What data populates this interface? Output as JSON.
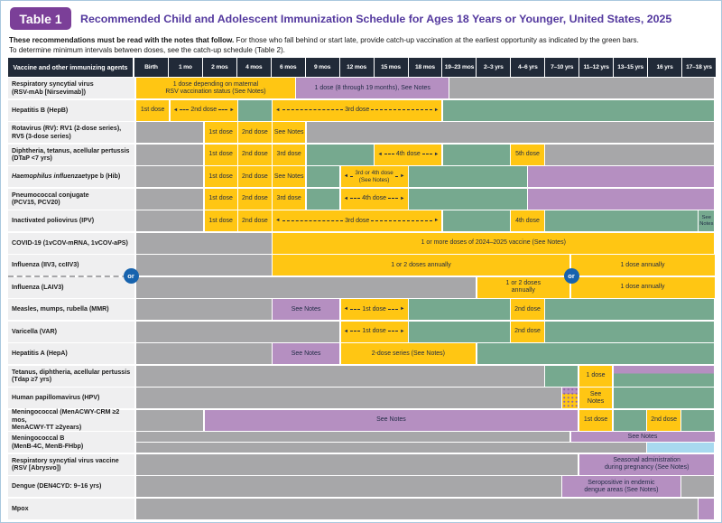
{
  "header": {
    "badge": "Table 1",
    "title": "Recommended Child and Adolescent Immunization Schedule for Ages 18 Years or Younger, United States, 2025"
  },
  "notes": {
    "line1_bold": "These recommendations must be read with the notes that follow.",
    "line1_rest": " For those who fall behind or start late, provide catch-up vaccination at the earliest opportunity as indicated by the green bars.",
    "line2": "To determine minimum intervals between doses, see the catch-up schedule (Table 2)."
  },
  "corner_header": "Vaccine and other immunizing agents",
  "columns": [
    "Birth",
    "1 mo",
    "2 mos",
    "4 mos",
    "6 mos",
    "9 mos",
    "12 mos",
    "15 mos",
    "18 mos",
    "19–23 mos",
    "2–3 yrs",
    "4–6 yrs",
    "7–10 yrs",
    "11–12 yrs",
    "13–15 yrs",
    "16 yrs",
    "17–18 yrs"
  ],
  "or_label": "or",
  "colors": {
    "yellow": "#FFC613",
    "green": "#76A98F",
    "purple": "#B58FC1",
    "gray": "#A7A7A9",
    "blue": "#A8D9EF",
    "header_bg": "#212A38",
    "badge_purple": "#7B3F98",
    "title_purple": "#53389E",
    "or_blue": "#1763AE",
    "label_bg": "#EFEFF0",
    "bar_text": "#1F2A44"
  },
  "rows": [
    {
      "name": "rsv-mab",
      "label": "Respiratory syncytial virus\n(RSV-mAb [Nirsevimab])",
      "tracks": [
        [
          {
            "c0": 0,
            "c1": 4.7,
            "color": "yellow",
            "text": "1 dose depending on maternal\nRSV vaccination status (See Notes)"
          },
          {
            "c0": 4.7,
            "c1": 9.2,
            "color": "purple",
            "text": "1 dose (8 through 19 months), See Notes"
          },
          {
            "c0": 9.2,
            "c1": 17,
            "color": "gray"
          }
        ]
      ]
    },
    {
      "name": "hepb",
      "label": "Hepatitis B (HepB)",
      "tracks": [
        [
          {
            "c0": 0,
            "c1": 1,
            "color": "yellow",
            "text": "1st dose"
          },
          {
            "c0": 1,
            "c1": 3,
            "color": "yellow",
            "text": "2nd dose",
            "arrows": true
          },
          {
            "c0": 3,
            "c1": 4,
            "color": "green"
          },
          {
            "c0": 4,
            "c1": 9,
            "color": "yellow",
            "text": "3rd dose",
            "arrows": true
          },
          {
            "c0": 9,
            "c1": 17,
            "color": "green"
          }
        ]
      ]
    },
    {
      "name": "rotavirus",
      "label": "Rotavirus (RV): RV1 (2-dose series),\nRV5 (3-dose series)",
      "tracks": [
        [
          {
            "c0": 0,
            "c1": 2,
            "color": "gray"
          },
          {
            "c0": 2,
            "c1": 3,
            "color": "yellow",
            "text": "1st dose"
          },
          {
            "c0": 3,
            "c1": 4,
            "color": "yellow",
            "text": "2nd dose"
          },
          {
            "c0": 4,
            "c1": 5,
            "color": "yellow",
            "text": "See Notes"
          },
          {
            "c0": 5,
            "c1": 17,
            "color": "gray"
          }
        ]
      ]
    },
    {
      "name": "dtap",
      "label": "Diphtheria, tetanus, acellular pertussis\n(DTaP <7 yrs)",
      "tracks": [
        [
          {
            "c0": 0,
            "c1": 2,
            "color": "gray"
          },
          {
            "c0": 2,
            "c1": 3,
            "color": "yellow",
            "text": "1st dose"
          },
          {
            "c0": 3,
            "c1": 4,
            "color": "yellow",
            "text": "2nd dose"
          },
          {
            "c0": 4,
            "c1": 5,
            "color": "yellow",
            "text": "3rd dose"
          },
          {
            "c0": 5,
            "c1": 7,
            "color": "green"
          },
          {
            "c0": 7,
            "c1": 9,
            "color": "yellow",
            "text": "4th dose",
            "arrows": true
          },
          {
            "c0": 9,
            "c1": 11,
            "color": "green"
          },
          {
            "c0": 11,
            "c1": 12,
            "color": "yellow",
            "text": "5th dose"
          },
          {
            "c0": 12,
            "c1": 17,
            "color": "gray"
          }
        ]
      ]
    },
    {
      "name": "hib",
      "label_em": "Haemophilus influenzae",
      "label": " type b (Hib)",
      "tracks": [
        [
          {
            "c0": 0,
            "c1": 2,
            "color": "gray"
          },
          {
            "c0": 2,
            "c1": 3,
            "color": "yellow",
            "text": "1st dose"
          },
          {
            "c0": 3,
            "c1": 4,
            "color": "yellow",
            "text": "2nd dose"
          },
          {
            "c0": 4,
            "c1": 5,
            "color": "yellow",
            "text": "See Notes"
          },
          {
            "c0": 5,
            "c1": 6,
            "color": "green"
          },
          {
            "c0": 6,
            "c1": 8,
            "color": "yellow",
            "text": "3rd or 4th dose\n(See Notes)",
            "arrows": true,
            "fs": 6.3
          },
          {
            "c0": 8,
            "c1": 11.5,
            "color": "green"
          },
          {
            "c0": 11.5,
            "c1": 17,
            "color": "purple"
          }
        ]
      ]
    },
    {
      "name": "pcv",
      "label": "Pneumococcal conjugate\n(PCV15, PCV20)",
      "tracks": [
        [
          {
            "c0": 0,
            "c1": 2,
            "color": "gray"
          },
          {
            "c0": 2,
            "c1": 3,
            "color": "yellow",
            "text": "1st dose"
          },
          {
            "c0": 3,
            "c1": 4,
            "color": "yellow",
            "text": "2nd dose"
          },
          {
            "c0": 4,
            "c1": 5,
            "color": "yellow",
            "text": "3rd dose"
          },
          {
            "c0": 5,
            "c1": 6,
            "color": "green"
          },
          {
            "c0": 6,
            "c1": 8,
            "color": "yellow",
            "text": "4th dose",
            "arrows": true
          },
          {
            "c0": 8,
            "c1": 11.5,
            "color": "green"
          },
          {
            "c0": 11.5,
            "c1": 17,
            "color": "purple"
          }
        ]
      ]
    },
    {
      "name": "ipv",
      "label": "Inactivated poliovirus (IPV)",
      "tracks": [
        [
          {
            "c0": 0,
            "c1": 2,
            "color": "gray"
          },
          {
            "c0": 2,
            "c1": 3,
            "color": "yellow",
            "text": "1st dose"
          },
          {
            "c0": 3,
            "c1": 4,
            "color": "yellow",
            "text": "2nd dose"
          },
          {
            "c0": 4,
            "c1": 9,
            "color": "yellow",
            "text": "3rd dose",
            "arrows": true
          },
          {
            "c0": 9,
            "c1": 11,
            "color": "green"
          },
          {
            "c0": 11,
            "c1": 12,
            "color": "yellow",
            "text": "4th dose"
          },
          {
            "c0": 12,
            "c1": 16.5,
            "color": "green"
          },
          {
            "c0": 16.5,
            "c1": 17,
            "color": "green",
            "text": "See\nNotes",
            "fs": 5.8
          }
        ]
      ]
    },
    {
      "name": "covid",
      "label": "COVID-19 (1vCOV-mRNA, 1vCOV-aPS)",
      "tracks": [
        [
          {
            "c0": 0,
            "c1": 4,
            "color": "gray"
          },
          {
            "c0": 4,
            "c1": 17,
            "color": "yellow",
            "text": "1 or more doses of 2024–2025 vaccine (See Notes)"
          }
        ]
      ]
    },
    {
      "name": "flu-iiv",
      "label": "Influenza (IIV3, ccIIV3)",
      "tracks": [
        [
          {
            "c0": 0,
            "c1": 4,
            "color": "gray"
          },
          {
            "c0": 4,
            "c1": 12.75,
            "color": "yellow",
            "text": "1 or 2 doses annually"
          },
          {
            "c0": 12.75,
            "c1": 17,
            "color": "yellow",
            "text": "1 dose annually"
          }
        ]
      ]
    },
    {
      "name": "flu-laiv",
      "label": "Influenza (LAIV3)",
      "tracks": [
        [
          {
            "c0": 0,
            "c1": 10,
            "color": "gray"
          },
          {
            "c0": 10,
            "c1": 12.75,
            "color": "yellow",
            "text": "1 or 2 doses\nannually"
          },
          {
            "c0": 12.75,
            "c1": 17,
            "color": "yellow",
            "text": "1 dose annually"
          }
        ]
      ]
    },
    {
      "name": "mmr",
      "label": "Measles, mumps, rubella (MMR)",
      "tracks": [
        [
          {
            "c0": 0,
            "c1": 4,
            "color": "gray"
          },
          {
            "c0": 4,
            "c1": 6,
            "color": "purple",
            "text": "See Notes"
          },
          {
            "c0": 6,
            "c1": 8,
            "color": "yellow",
            "text": "1st dose",
            "arrows": true
          },
          {
            "c0": 8,
            "c1": 11,
            "color": "green"
          },
          {
            "c0": 11,
            "c1": 12,
            "color": "yellow",
            "text": "2nd dose"
          },
          {
            "c0": 12,
            "c1": 17,
            "color": "green"
          }
        ]
      ]
    },
    {
      "name": "varicella",
      "label": "Varicella (VAR)",
      "tracks": [
        [
          {
            "c0": 0,
            "c1": 6,
            "color": "gray"
          },
          {
            "c0": 6,
            "c1": 8,
            "color": "yellow",
            "text": "1st dose",
            "arrows": true
          },
          {
            "c0": 8,
            "c1": 11,
            "color": "green"
          },
          {
            "c0": 11,
            "c1": 12,
            "color": "yellow",
            "text": "2nd dose"
          },
          {
            "c0": 12,
            "c1": 17,
            "color": "green"
          }
        ]
      ]
    },
    {
      "name": "hepa",
      "label": "Hepatitis A (HepA)",
      "tracks": [
        [
          {
            "c0": 0,
            "c1": 4,
            "color": "gray"
          },
          {
            "c0": 4,
            "c1": 6,
            "color": "purple",
            "text": "See Notes"
          },
          {
            "c0": 6,
            "c1": 10,
            "color": "yellow",
            "text": "2-dose series (See Notes)"
          },
          {
            "c0": 10,
            "c1": 17,
            "color": "green"
          }
        ]
      ]
    },
    {
      "name": "tdap",
      "label": "Tetanus, diphtheria, acellular pertussis\n(Tdap ≥7 yrs)",
      "tracks": [
        [
          {
            "c0": 0,
            "c1": 12,
            "color": "gray"
          },
          {
            "c0": 12,
            "c1": 13,
            "color": "green"
          },
          {
            "c0": 13,
            "c1": 14,
            "color": "yellow",
            "text": "1 dose"
          },
          {
            "c0": 14,
            "c1": 17,
            "color": "split_pg"
          }
        ]
      ]
    },
    {
      "name": "hpv",
      "label": "Human papillomavirus (HPV)",
      "tracks": [
        [
          {
            "c0": 0,
            "c1": 12.5,
            "color": "gray"
          },
          {
            "c0": 12.5,
            "c1": 13,
            "color": "dotted"
          },
          {
            "c0": 13,
            "c1": 14,
            "color": "yellow",
            "text": "See\nNotes"
          },
          {
            "c0": 14,
            "c1": 17,
            "color": "green"
          }
        ]
      ]
    },
    {
      "name": "menacwy",
      "label": "Meningococcal (MenACWY-CRM ≥2 mos,\nMenACWY-TT ≥2years)",
      "tracks": [
        [
          {
            "c0": 0,
            "c1": 2,
            "color": "gray"
          },
          {
            "c0": 2,
            "c1": 13,
            "color": "purple",
            "text": "See Notes"
          },
          {
            "c0": 13,
            "c1": 14,
            "color": "yellow",
            "text": "1st dose"
          },
          {
            "c0": 14,
            "c1": 15,
            "color": "green"
          },
          {
            "c0": 15,
            "c1": 16,
            "color": "yellow",
            "text": "2nd dose"
          },
          {
            "c0": 16,
            "c1": 17,
            "color": "green"
          }
        ]
      ]
    },
    {
      "name": "menb",
      "label": "Meningococcal B\n(MenB-4C, MenB-FHbp)",
      "tracks": [
        [
          {
            "c0": 0,
            "c1": 12.75,
            "color": "gray"
          },
          {
            "c0": 12.75,
            "c1": 17,
            "color": "purple",
            "text": "See Notes"
          }
        ],
        [
          {
            "c0": 0,
            "c1": 15,
            "color": "gray"
          },
          {
            "c0": 15,
            "c1": 17,
            "color": "blue"
          }
        ]
      ]
    },
    {
      "name": "rsv-vaccine",
      "label": "Respiratory syncytial virus vaccine\n(RSV [Abrysvo])",
      "tracks": [
        [
          {
            "c0": 0,
            "c1": 13,
            "color": "gray"
          },
          {
            "c0": 13,
            "c1": 17,
            "color": "purple",
            "text": "Seasonal administration\nduring pregnancy (See Notes)"
          }
        ]
      ]
    },
    {
      "name": "dengue",
      "label": "Dengue (DEN4CYD: 9–16 yrs)",
      "tracks": [
        [
          {
            "c0": 0,
            "c1": 12.5,
            "color": "gray"
          },
          {
            "c0": 12.5,
            "c1": 16,
            "color": "purple",
            "text": "Seropositive in endemic\ndengue areas (See Notes)"
          },
          {
            "c0": 16,
            "c1": 17,
            "color": "gray"
          }
        ]
      ]
    },
    {
      "name": "mpox",
      "label": "Mpox",
      "tracks": [
        [
          {
            "c0": 0,
            "c1": 16.5,
            "color": "gray"
          },
          {
            "c0": 16.5,
            "c1": 17,
            "color": "purple"
          }
        ]
      ]
    }
  ]
}
